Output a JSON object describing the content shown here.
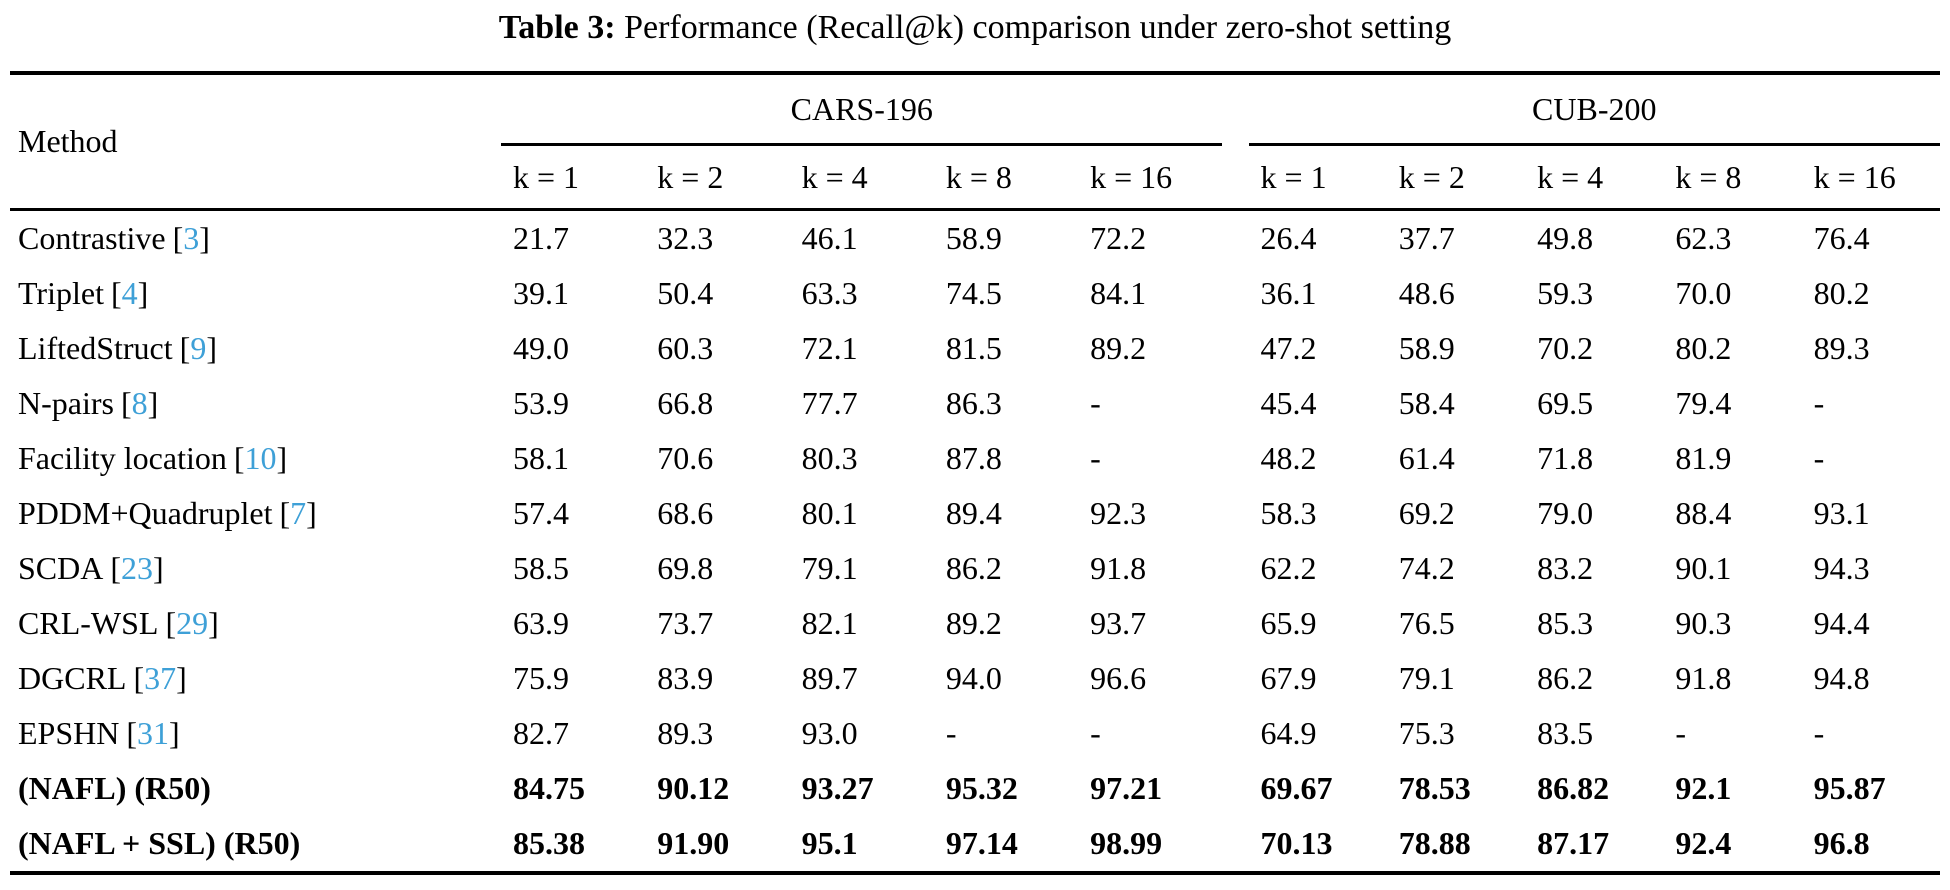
{
  "caption": {
    "label": "Table 3:",
    "text": "Performance (Recall@k) comparison under zero-shot setting"
  },
  "colors": {
    "citation_blue": "#3EA0D7",
    "text": "#000000",
    "background": "#ffffff"
  },
  "table": {
    "method_header": "Method",
    "cite_open": "[",
    "cite_close": "]",
    "groups": [
      {
        "label": "CARS-196",
        "subheaders": [
          "k = 1",
          "k = 2",
          "k = 4",
          "k = 8",
          "k = 16"
        ]
      },
      {
        "label": "CUB-200",
        "subheaders": [
          "k = 1",
          "k = 2",
          "k = 4",
          "k = 8",
          "k = 16"
        ]
      }
    ],
    "rows": [
      {
        "method": "Contrastive",
        "cite": "3",
        "bold": false,
        "cars": [
          "21.7",
          "32.3",
          "46.1",
          "58.9",
          "72.2"
        ],
        "cub": [
          "26.4",
          "37.7",
          "49.8",
          "62.3",
          "76.4"
        ]
      },
      {
        "method": "Triplet",
        "cite": "4",
        "bold": false,
        "cars": [
          "39.1",
          "50.4",
          "63.3",
          "74.5",
          "84.1"
        ],
        "cub": [
          "36.1",
          "48.6",
          "59.3",
          "70.0",
          "80.2"
        ]
      },
      {
        "method": "LiftedStruct",
        "cite": "9",
        "bold": false,
        "cars": [
          "49.0",
          "60.3",
          "72.1",
          "81.5",
          "89.2"
        ],
        "cub": [
          "47.2",
          "58.9",
          "70.2",
          "80.2",
          "89.3"
        ]
      },
      {
        "method": "N-pairs",
        "cite": "8",
        "bold": false,
        "cars": [
          "53.9",
          "66.8",
          "77.7",
          "86.3",
          "-"
        ],
        "cub": [
          "45.4",
          "58.4",
          "69.5",
          "79.4",
          "-"
        ]
      },
      {
        "method": "Facility location",
        "cite": "10",
        "bold": false,
        "cars": [
          "58.1",
          "70.6",
          "80.3",
          "87.8",
          "-"
        ],
        "cub": [
          "48.2",
          "61.4",
          "71.8",
          "81.9",
          "-"
        ]
      },
      {
        "method": "PDDM+Quadruplet",
        "cite": "7",
        "bold": false,
        "cars": [
          "57.4",
          "68.6",
          "80.1",
          "89.4",
          "92.3"
        ],
        "cub": [
          "58.3",
          "69.2",
          "79.0",
          "88.4",
          "93.1"
        ]
      },
      {
        "method": "SCDA",
        "cite": "23",
        "bold": false,
        "cars": [
          "58.5",
          "69.8",
          "79.1",
          "86.2",
          "91.8"
        ],
        "cub": [
          "62.2",
          "74.2",
          "83.2",
          "90.1",
          "94.3"
        ]
      },
      {
        "method": "CRL-WSL",
        "cite": "29",
        "bold": false,
        "cars": [
          "63.9",
          "73.7",
          "82.1",
          "89.2",
          "93.7"
        ],
        "cub": [
          "65.9",
          "76.5",
          "85.3",
          "90.3",
          "94.4"
        ]
      },
      {
        "method": "DGCRL",
        "cite": "37",
        "bold": false,
        "cars": [
          "75.9",
          "83.9",
          "89.7",
          "94.0",
          "96.6"
        ],
        "cub": [
          "67.9",
          "79.1",
          "86.2",
          "91.8",
          "94.8"
        ]
      },
      {
        "method": "EPSHN",
        "cite": "31",
        "bold": false,
        "cars": [
          "82.7",
          "89.3",
          "93.0",
          "-",
          "-"
        ],
        "cub": [
          "64.9",
          "75.3",
          "83.5",
          "-",
          "-"
        ]
      },
      {
        "method": "(NAFL) (R50)",
        "cite": null,
        "bold": true,
        "cars": [
          "84.75",
          "90.12",
          "93.27",
          "95.32",
          "97.21"
        ],
        "cub": [
          "69.67",
          "78.53",
          "86.82",
          "92.1",
          "95.87"
        ]
      },
      {
        "method": "(NAFL + SSL) (R50)",
        "cite": null,
        "bold": true,
        "cars": [
          "85.38",
          "91.90",
          "95.1",
          "97.14",
          "98.99"
        ],
        "cub": [
          "70.13",
          "78.88",
          "87.17",
          "92.4",
          "96.8"
        ]
      }
    ]
  }
}
